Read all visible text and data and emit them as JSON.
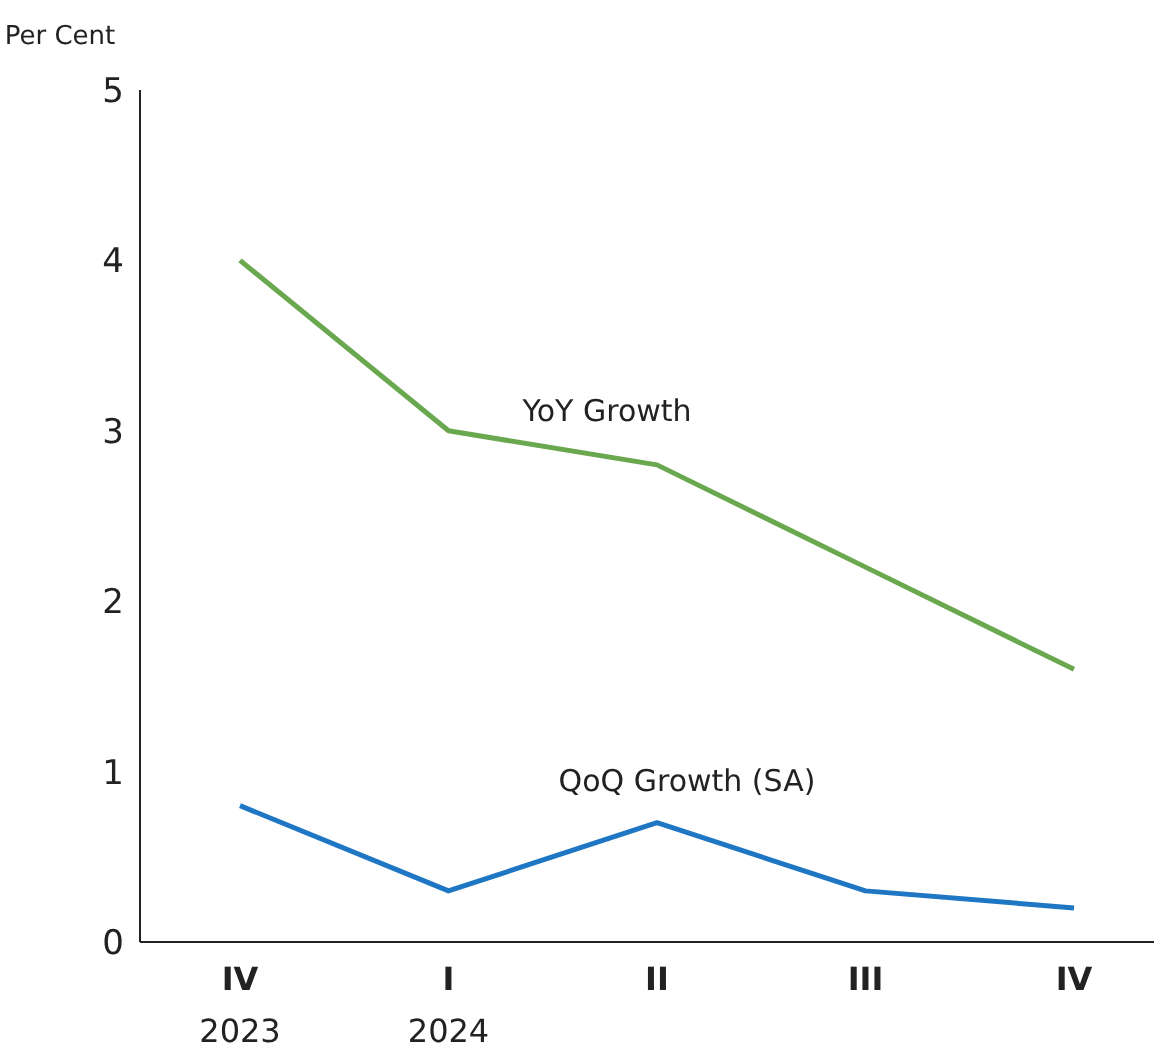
{
  "chart_data": {
    "type": "line",
    "ylabel": "Per Cent",
    "categories": [
      "IV\n2023",
      "I\n2024",
      "II",
      "III",
      "IV"
    ],
    "series": [
      {
        "name": "YoY Growth",
        "color": "#6aa84f",
        "values": [
          4.0,
          3.0,
          2.8,
          2.2,
          1.6
        ]
      },
      {
        "name": "QoQ Growth (SA)",
        "color": "#1f77c4",
        "values": [
          0.8,
          0.3,
          0.7,
          0.3,
          0.2
        ]
      }
    ],
    "ylim": [
      0,
      5
    ],
    "yticks": [
      0,
      1,
      2,
      3,
      4,
      5
    ],
    "grid": false,
    "legend": false,
    "marker": "none",
    "line_style": "solid"
  }
}
